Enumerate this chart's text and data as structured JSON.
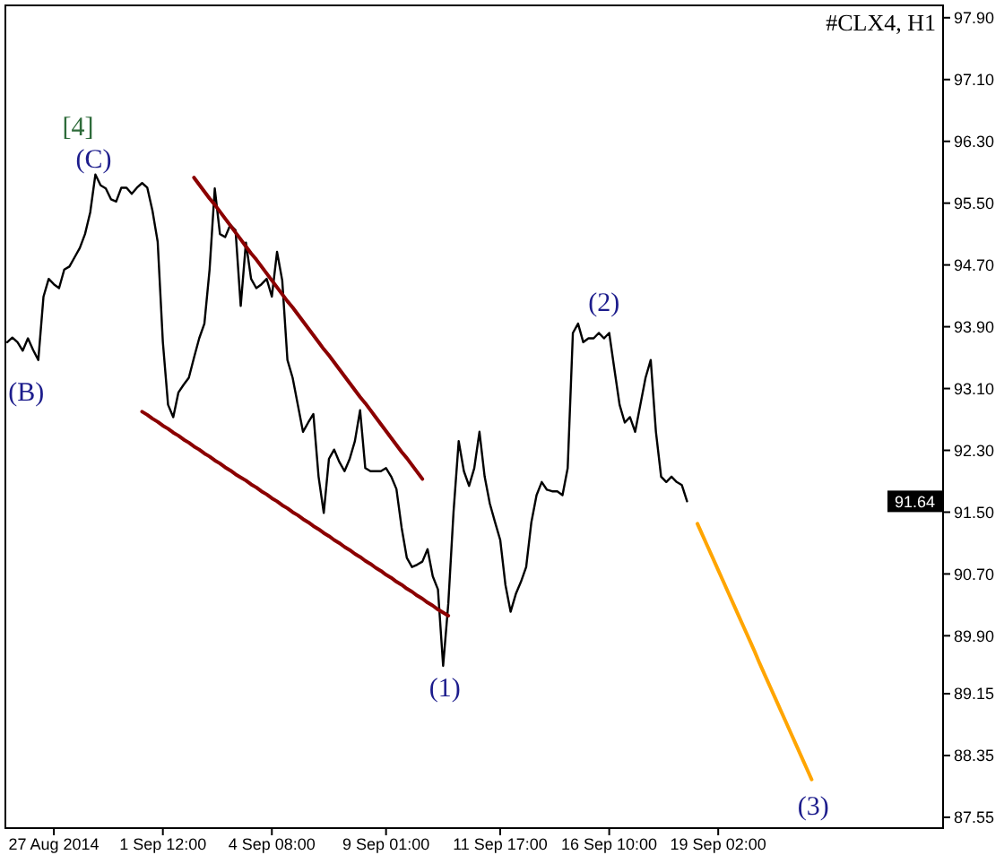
{
  "chart_data": {
    "type": "line",
    "title": "#CLX4, H1",
    "categories": [
      null,
      null,
      null,
      null,
      null,
      null,
      null,
      null,
      null,
      "27 Aug 2014",
      null,
      null,
      null,
      null,
      null,
      null,
      null,
      null,
      null,
      null,
      null,
      null,
      null,
      null,
      null,
      null,
      null,
      null,
      null,
      null,
      "1 Sep 12:00",
      null,
      null,
      null,
      null,
      null,
      null,
      null,
      null,
      null,
      null,
      null,
      null,
      null,
      null,
      null,
      null,
      null,
      null,
      null,
      null,
      "4 Sep 08:00",
      null,
      null,
      null,
      null,
      null,
      null,
      null,
      null,
      null,
      null,
      null,
      null,
      null,
      null,
      null,
      null,
      null,
      null,
      null,
      null,
      null,
      "9 Sep 01:00",
      null,
      null,
      null,
      null,
      null,
      null,
      null,
      null,
      null,
      null,
      null,
      null,
      null,
      null,
      null,
      null,
      null,
      null,
      null,
      null,
      null,
      "11 Sep 17:00",
      null,
      null,
      null,
      null,
      null,
      null,
      null,
      null,
      null,
      null,
      null,
      null,
      null,
      null,
      null,
      null,
      null,
      null,
      null,
      null,
      "16 Sep 10:00",
      null,
      null,
      null,
      null,
      null,
      null,
      null,
      null,
      null,
      null,
      null,
      null,
      null,
      null,
      null,
      null,
      null,
      null,
      null,
      null,
      "19 Sep 02:00",
      null,
      null,
      null,
      null,
      null,
      null,
      null,
      null,
      null,
      null,
      null,
      null,
      null,
      null,
      null,
      null,
      null,
      null,
      null,
      null,
      null,
      null,
      null,
      null,
      null,
      null,
      null,
      null,
      null,
      null,
      null,
      null,
      null,
      null,
      null,
      null,
      null,
      null,
      null,
      null,
      null,
      null,
      null
    ],
    "ylim": [
      87.41,
      98.06
    ],
    "yticks": [
      {
        "value": 97.9,
        "label": "97.90"
      },
      {
        "value": 97.1,
        "label": "97.10"
      },
      {
        "value": 96.3,
        "label": "96.30"
      },
      {
        "value": 95.5,
        "label": "95.50"
      },
      {
        "value": 94.7,
        "label": "94.70"
      },
      {
        "value": 93.9,
        "label": "93.90"
      },
      {
        "value": 93.1,
        "label": "93.10"
      },
      {
        "value": 92.3,
        "label": "92.30"
      },
      {
        "value": 91.5,
        "label": "91.50"
      },
      {
        "value": 90.7,
        "label": "90.70"
      },
      {
        "value": 89.9,
        "label": "89.90"
      },
      {
        "value": 89.15,
        "label": "89.15"
      },
      {
        "value": 88.35,
        "label": "88.35"
      },
      {
        "value": 87.55,
        "label": "87.55"
      }
    ],
    "series": [
      {
        "color": "#000000",
        "values": [
          93.7,
          93.76,
          93.7,
          93.59,
          93.75,
          93.6,
          93.47,
          94.29,
          94.52,
          94.45,
          94.4,
          94.64,
          94.68,
          94.8,
          94.92,
          95.1,
          95.38,
          95.87,
          95.73,
          95.69,
          95.55,
          95.52,
          95.7,
          95.7,
          95.62,
          95.7,
          95.76,
          95.7,
          95.4,
          95.0,
          93.7,
          92.89,
          92.73,
          93.05,
          93.15,
          93.24,
          93.5,
          93.75,
          93.94,
          94.64,
          95.69,
          95.1,
          95.06,
          95.22,
          95.15,
          94.17,
          94.99,
          94.52,
          94.4,
          94.45,
          94.52,
          94.29,
          94.87,
          94.5,
          93.47,
          93.24,
          92.89,
          92.54,
          92.66,
          92.77,
          91.96,
          91.49,
          92.19,
          92.31,
          92.15,
          92.03,
          92.19,
          92.42,
          92.82,
          92.07,
          92.03,
          92.03,
          92.03,
          92.07,
          91.96,
          91.8,
          91.3,
          90.91,
          90.79,
          90.82,
          90.86,
          91.02,
          90.67,
          90.5,
          89.51,
          90.32,
          91.5,
          92.42,
          92.03,
          91.84,
          92.07,
          92.54,
          91.96,
          91.61,
          91.37,
          91.14,
          90.56,
          90.21,
          90.44,
          90.6,
          90.79,
          91.37,
          91.72,
          91.89,
          91.79,
          91.77,
          91.77,
          91.72,
          92.07,
          93.82,
          93.94,
          93.7,
          93.75,
          93.75,
          93.82,
          93.75,
          93.82,
          93.35,
          92.89,
          92.66,
          92.73,
          92.54,
          92.89,
          93.24,
          93.47,
          92.54,
          91.96,
          91.89,
          91.96,
          91.89,
          91.85,
          91.64,
          null,
          null,
          null,
          null,
          null,
          null,
          null,
          null,
          null,
          null,
          null,
          null,
          null,
          null,
          null,
          null,
          null,
          null,
          null,
          null,
          null,
          null,
          null,
          null,
          null,
          null,
          null,
          null,
          null,
          null,
          null,
          null,
          null,
          null,
          null,
          null,
          null,
          null,
          null,
          null,
          null,
          null,
          null,
          null,
          null,
          null,
          null,
          null,
          null
        ]
      },
      {
        "color": "#8b0000",
        "values": [
          null,
          null,
          null,
          null,
          null,
          null,
          null,
          null,
          null,
          null,
          null,
          null,
          null,
          null,
          null,
          null,
          null,
          null,
          null,
          null,
          null,
          null,
          null,
          null,
          null,
          null,
          null,
          null,
          null,
          null,
          null,
          null,
          null,
          null,
          null,
          null,
          95.83,
          95.74,
          95.65,
          95.56,
          95.48,
          95.39,
          95.3,
          95.21,
          95.12,
          95.03,
          94.94,
          94.85,
          94.77,
          94.68,
          94.59,
          94.5,
          94.41,
          94.32,
          94.23,
          94.15,
          94.06,
          93.97,
          93.88,
          93.79,
          93.7,
          93.61,
          93.53,
          93.44,
          93.35,
          93.26,
          93.17,
          93.08,
          92.99,
          92.91,
          92.82,
          92.73,
          92.64,
          92.55,
          92.46,
          92.37,
          92.28,
          92.2,
          92.11,
          92.02,
          91.93,
          null,
          null,
          null,
          null,
          null,
          null,
          null,
          null,
          null,
          null,
          null,
          null,
          null,
          null,
          null,
          null,
          null,
          null,
          null,
          null,
          null,
          null,
          null,
          null,
          null,
          null,
          null,
          null,
          null,
          null,
          null,
          null,
          null,
          null,
          null,
          null,
          null,
          null,
          null,
          null,
          null,
          null,
          null,
          null,
          null,
          null,
          null,
          null,
          null,
          null,
          null,
          null,
          null,
          null,
          null,
          null,
          null,
          null,
          null,
          null,
          null,
          null,
          null,
          null,
          null,
          null,
          null,
          null,
          null,
          null,
          null,
          null,
          null,
          null,
          null,
          null,
          null,
          null,
          null,
          null,
          null,
          null,
          null,
          null,
          null,
          null,
          null,
          null,
          null,
          null,
          null,
          null,
          null,
          null,
          null,
          null,
          null,
          null,
          null,
          null
        ]
      },
      {
        "color": "#8b0000",
        "values": [
          null,
          null,
          null,
          null,
          null,
          null,
          null,
          null,
          null,
          null,
          null,
          null,
          null,
          null,
          null,
          null,
          null,
          null,
          null,
          null,
          null,
          null,
          null,
          null,
          null,
          null,
          92.8,
          92.76,
          92.71,
          92.67,
          92.62,
          92.58,
          92.53,
          92.49,
          92.44,
          92.4,
          92.35,
          92.31,
          92.26,
          92.22,
          92.17,
          92.13,
          92.08,
          92.04,
          91.99,
          91.95,
          91.91,
          91.86,
          91.82,
          91.77,
          91.73,
          91.68,
          91.64,
          91.59,
          91.55,
          91.5,
          91.46,
          91.41,
          91.37,
          91.32,
          91.28,
          91.23,
          91.19,
          91.14,
          91.1,
          91.05,
          91.01,
          90.96,
          90.92,
          90.87,
          90.83,
          90.78,
          90.74,
          90.69,
          90.65,
          90.6,
          90.56,
          90.51,
          90.47,
          90.42,
          90.38,
          90.33,
          90.29,
          90.24,
          90.2,
          90.16,
          null,
          null,
          null,
          null,
          null,
          null,
          null,
          null,
          null,
          null,
          null,
          null,
          null,
          null,
          null,
          null,
          null,
          null,
          null,
          null,
          null,
          null,
          null,
          null,
          null,
          null,
          null,
          null,
          null,
          null,
          null,
          null,
          null,
          null,
          null,
          null,
          null,
          null,
          null,
          null,
          null,
          null,
          null,
          null,
          null,
          null,
          null,
          null,
          null,
          null,
          null,
          null,
          null,
          null,
          null,
          null,
          null,
          null,
          null,
          null,
          null,
          null,
          null,
          null,
          null,
          null,
          null,
          null,
          null,
          null,
          null,
          null,
          null,
          null,
          null,
          null,
          null,
          null,
          null,
          null,
          null,
          null,
          null,
          null,
          null,
          null,
          null,
          null,
          null,
          null,
          null,
          null,
          null,
          null,
          null
        ]
      },
      {
        "color": "#ffa500",
        "values": [
          null,
          null,
          null,
          null,
          null,
          null,
          null,
          null,
          null,
          null,
          null,
          null,
          null,
          null,
          null,
          null,
          null,
          null,
          null,
          null,
          null,
          null,
          null,
          null,
          null,
          null,
          null,
          null,
          null,
          null,
          null,
          null,
          null,
          null,
          null,
          null,
          null,
          null,
          null,
          null,
          null,
          null,
          null,
          null,
          null,
          null,
          null,
          null,
          null,
          null,
          null,
          null,
          null,
          null,
          null,
          null,
          null,
          null,
          null,
          null,
          null,
          null,
          null,
          null,
          null,
          null,
          null,
          null,
          null,
          null,
          null,
          null,
          null,
          null,
          null,
          null,
          null,
          null,
          null,
          null,
          null,
          null,
          null,
          null,
          null,
          null,
          null,
          null,
          null,
          null,
          null,
          null,
          null,
          null,
          null,
          null,
          null,
          null,
          null,
          null,
          null,
          null,
          null,
          null,
          null,
          null,
          null,
          null,
          null,
          null,
          null,
          null,
          null,
          null,
          null,
          null,
          null,
          null,
          null,
          null,
          null,
          null,
          null,
          null,
          null,
          null,
          null,
          null,
          null,
          null,
          null,
          null,
          null,
          91.35,
          91.2,
          91.05,
          90.9,
          90.75,
          90.6,
          90.45,
          90.3,
          90.15,
          90.0,
          89.85,
          89.7,
          89.54,
          89.39,
          89.24,
          89.09,
          88.94,
          88.79,
          88.64,
          88.49,
          88.34,
          88.19,
          88.04,
          null,
          null,
          null,
          null,
          null,
          null,
          null,
          null,
          null,
          null,
          null,
          null,
          null,
          null,
          null,
          null,
          null,
          null,
          null,
          null,
          null,
          null,
          null,
          null,
          null
        ]
      }
    ],
    "annotations": [
      "[4]",
      "(C)",
      "(B)",
      "(1)",
      "(2)",
      "(3)",
      {
        "text": "91.64",
        "y": 91.64
      }
    ],
    "grid": false,
    "marker": "none",
    "line_style": "solid"
  }
}
